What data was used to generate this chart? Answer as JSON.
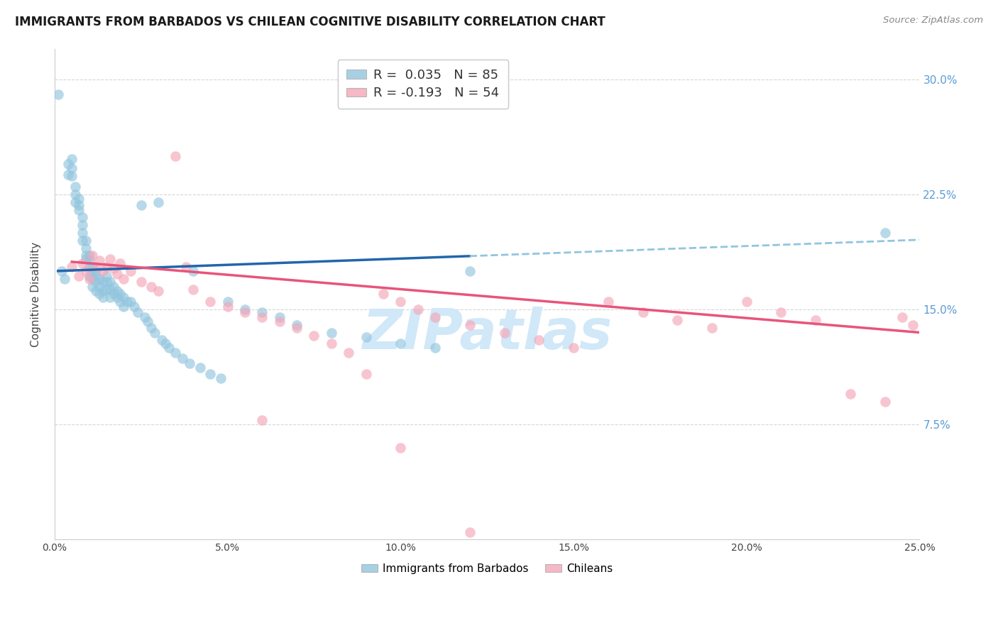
{
  "title": "IMMIGRANTS FROM BARBADOS VS CHILEAN COGNITIVE DISABILITY CORRELATION CHART",
  "source": "Source: ZipAtlas.com",
  "ylabel": "Cognitive Disability",
  "xlim": [
    0.0,
    0.25
  ],
  "ylim": [
    0.0,
    0.32
  ],
  "xlabel_vals": [
    0.0,
    0.05,
    0.1,
    0.15,
    0.2,
    0.25
  ],
  "xlabel_ticks": [
    "0.0%",
    "5.0%",
    "10.0%",
    "15.0%",
    "20.0%",
    "25.0%"
  ],
  "ylabel_vals": [
    0.075,
    0.15,
    0.225,
    0.3
  ],
  "ylabel_ticks": [
    "7.5%",
    "15.0%",
    "22.5%",
    "30.0%"
  ],
  "blue_color": "#92c5de",
  "pink_color": "#f4a6b8",
  "blue_line_color": "#2166ac",
  "pink_line_color": "#e8547a",
  "blue_dash_color": "#92c5de",
  "watermark": "ZIPatlas",
  "watermark_color": "#d0e8f8",
  "background_color": "#ffffff",
  "grid_color": "#cccccc",
  "right_tick_color": "#5b9bd5",
  "blue_N": 85,
  "pink_N": 54,
  "blue_R": "0.035",
  "pink_R": "-0.193",
  "blue_scatter_x": [
    0.001,
    0.002,
    0.003,
    0.004,
    0.004,
    0.005,
    0.005,
    0.005,
    0.006,
    0.006,
    0.006,
    0.007,
    0.007,
    0.007,
    0.008,
    0.008,
    0.008,
    0.008,
    0.009,
    0.009,
    0.009,
    0.009,
    0.01,
    0.01,
    0.01,
    0.01,
    0.011,
    0.011,
    0.011,
    0.011,
    0.012,
    0.012,
    0.012,
    0.012,
    0.013,
    0.013,
    0.013,
    0.014,
    0.014,
    0.014,
    0.015,
    0.015,
    0.015,
    0.016,
    0.016,
    0.016,
    0.017,
    0.017,
    0.018,
    0.018,
    0.019,
    0.019,
    0.02,
    0.02,
    0.021,
    0.022,
    0.023,
    0.024,
    0.025,
    0.026,
    0.027,
    0.028,
    0.029,
    0.03,
    0.031,
    0.032,
    0.033,
    0.035,
    0.037,
    0.039,
    0.04,
    0.042,
    0.045,
    0.048,
    0.05,
    0.055,
    0.06,
    0.065,
    0.07,
    0.08,
    0.09,
    0.1,
    0.11,
    0.12,
    0.24
  ],
  "blue_scatter_y": [
    0.29,
    0.175,
    0.17,
    0.245,
    0.238,
    0.248,
    0.242,
    0.237,
    0.23,
    0.225,
    0.22,
    0.222,
    0.218,
    0.215,
    0.21,
    0.205,
    0.2,
    0.195,
    0.195,
    0.19,
    0.185,
    0.183,
    0.185,
    0.182,
    0.178,
    0.172,
    0.178,
    0.175,
    0.17,
    0.165,
    0.175,
    0.172,
    0.168,
    0.162,
    0.17,
    0.165,
    0.16,
    0.168,
    0.162,
    0.158,
    0.172,
    0.168,
    0.163,
    0.168,
    0.163,
    0.158,
    0.165,
    0.16,
    0.162,
    0.158,
    0.16,
    0.155,
    0.158,
    0.152,
    0.155,
    0.155,
    0.152,
    0.148,
    0.218,
    0.145,
    0.142,
    0.138,
    0.135,
    0.22,
    0.13,
    0.128,
    0.125,
    0.122,
    0.118,
    0.115,
    0.175,
    0.112,
    0.108,
    0.105,
    0.155,
    0.15,
    0.148,
    0.145,
    0.14,
    0.135,
    0.132,
    0.128,
    0.125,
    0.175,
    0.2
  ],
  "pink_scatter_x": [
    0.005,
    0.007,
    0.008,
    0.009,
    0.01,
    0.011,
    0.012,
    0.013,
    0.014,
    0.015,
    0.016,
    0.017,
    0.018,
    0.019,
    0.02,
    0.022,
    0.025,
    0.028,
    0.03,
    0.035,
    0.038,
    0.04,
    0.045,
    0.05,
    0.055,
    0.06,
    0.065,
    0.07,
    0.075,
    0.08,
    0.085,
    0.09,
    0.095,
    0.1,
    0.105,
    0.11,
    0.12,
    0.13,
    0.14,
    0.15,
    0.16,
    0.17,
    0.18,
    0.19,
    0.2,
    0.21,
    0.22,
    0.23,
    0.24,
    0.245,
    0.248,
    0.06,
    0.1,
    0.12
  ],
  "pink_scatter_y": [
    0.178,
    0.172,
    0.18,
    0.175,
    0.17,
    0.185,
    0.178,
    0.182,
    0.175,
    0.178,
    0.183,
    0.177,
    0.173,
    0.18,
    0.17,
    0.175,
    0.168,
    0.165,
    0.162,
    0.25,
    0.178,
    0.163,
    0.155,
    0.152,
    0.148,
    0.145,
    0.142,
    0.138,
    0.133,
    0.128,
    0.122,
    0.108,
    0.16,
    0.155,
    0.15,
    0.145,
    0.14,
    0.135,
    0.13,
    0.125,
    0.155,
    0.148,
    0.143,
    0.138,
    0.155,
    0.148,
    0.143,
    0.095,
    0.09,
    0.145,
    0.14,
    0.078,
    0.06,
    0.005
  ]
}
